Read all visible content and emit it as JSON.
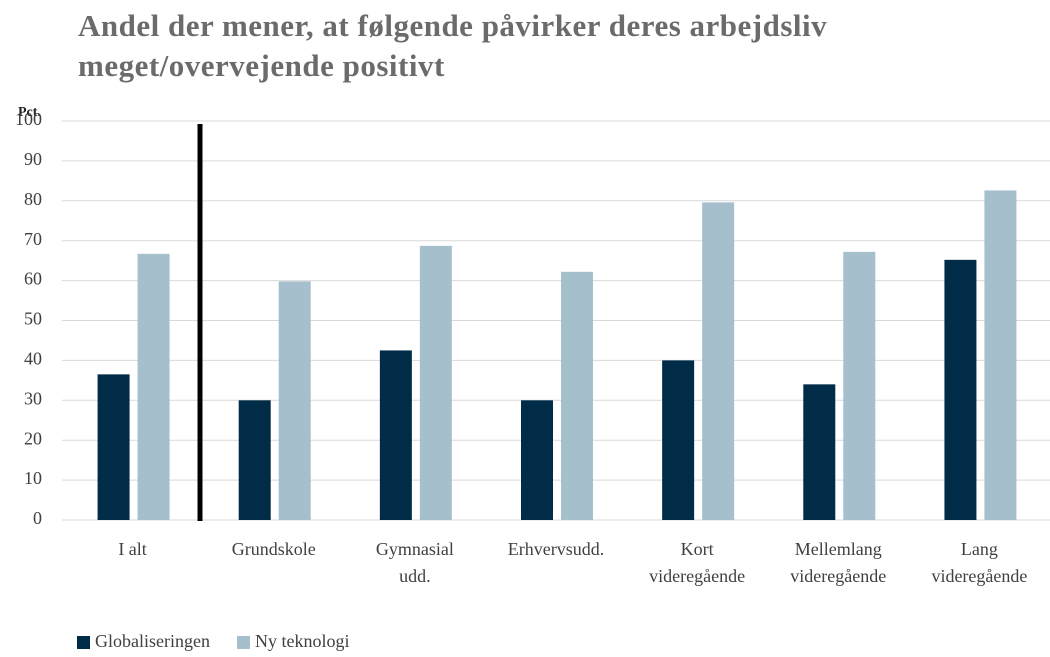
{
  "chart_data": {
    "type": "bar",
    "title": "Andel der mener, at følgende påvirker deres arbejdsliv meget/overvejende positivt",
    "y_label": "Pct.",
    "categories": [
      [
        "I alt"
      ],
      [
        "Grundskole"
      ],
      [
        "Gymnasial",
        "udd."
      ],
      [
        "Erhvervsudd."
      ],
      [
        "Kort",
        "videregående"
      ],
      [
        "Mellemlang",
        "videregående"
      ],
      [
        "Lang",
        "videregående"
      ]
    ],
    "series": [
      {
        "name": "Globaliseringen",
        "color": "#012c47",
        "values": [
          36.5,
          30,
          42.5,
          30,
          40,
          34,
          65.2
        ]
      },
      {
        "name": "Ny teknologi",
        "color": "#a5bfcc",
        "values": [
          66.7,
          59.8,
          68.7,
          62.2,
          79.6,
          67.2,
          82.6
        ]
      }
    ],
    "ylim": [
      0,
      100
    ],
    "yticks": [
      0,
      10,
      20,
      30,
      40,
      50,
      60,
      70,
      80,
      90,
      100
    ],
    "grid": true,
    "legend": "bottom"
  }
}
